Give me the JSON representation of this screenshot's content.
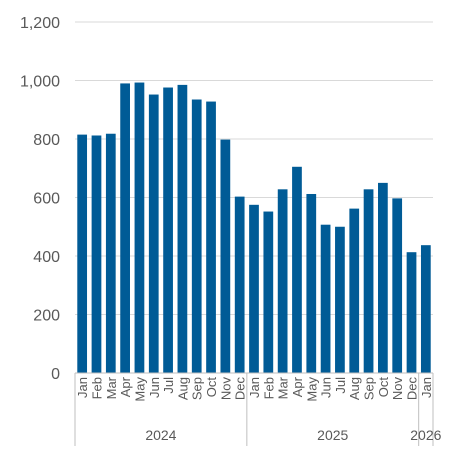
{
  "chart_data": {
    "type": "bar",
    "title": "",
    "xlabel": "",
    "ylabel": "",
    "ylim": [
      0,
      1200
    ],
    "yticks": [
      0,
      200,
      400,
      600,
      800,
      1000,
      1200
    ],
    "ytick_labels": [
      "0",
      "200",
      "400",
      "600",
      "800",
      "1,000",
      "1,200"
    ],
    "grid": true,
    "legend": "none",
    "bar_color": "#005b96",
    "categories": [
      "Jan",
      "Feb",
      "Mar",
      "Apr",
      "May",
      "Jun",
      "Jul",
      "Aug",
      "Sep",
      "Oct",
      "Nov",
      "Dec",
      "Jan",
      "Feb",
      "Mar",
      "Apr",
      "May",
      "Jun",
      "Jul",
      "Aug",
      "Sep",
      "Oct",
      "Nov",
      "Dec",
      "Jan"
    ],
    "values": [
      815,
      812,
      818,
      990,
      993,
      952,
      976,
      985,
      935,
      928,
      798,
      603,
      575,
      552,
      628,
      705,
      612,
      507,
      500,
      562,
      628,
      650,
      597,
      413,
      437
    ],
    "year_groups": [
      {
        "label": "2024",
        "count": 12
      },
      {
        "label": "2025",
        "count": 12
      },
      {
        "label": "2026",
        "count": 1
      }
    ]
  }
}
